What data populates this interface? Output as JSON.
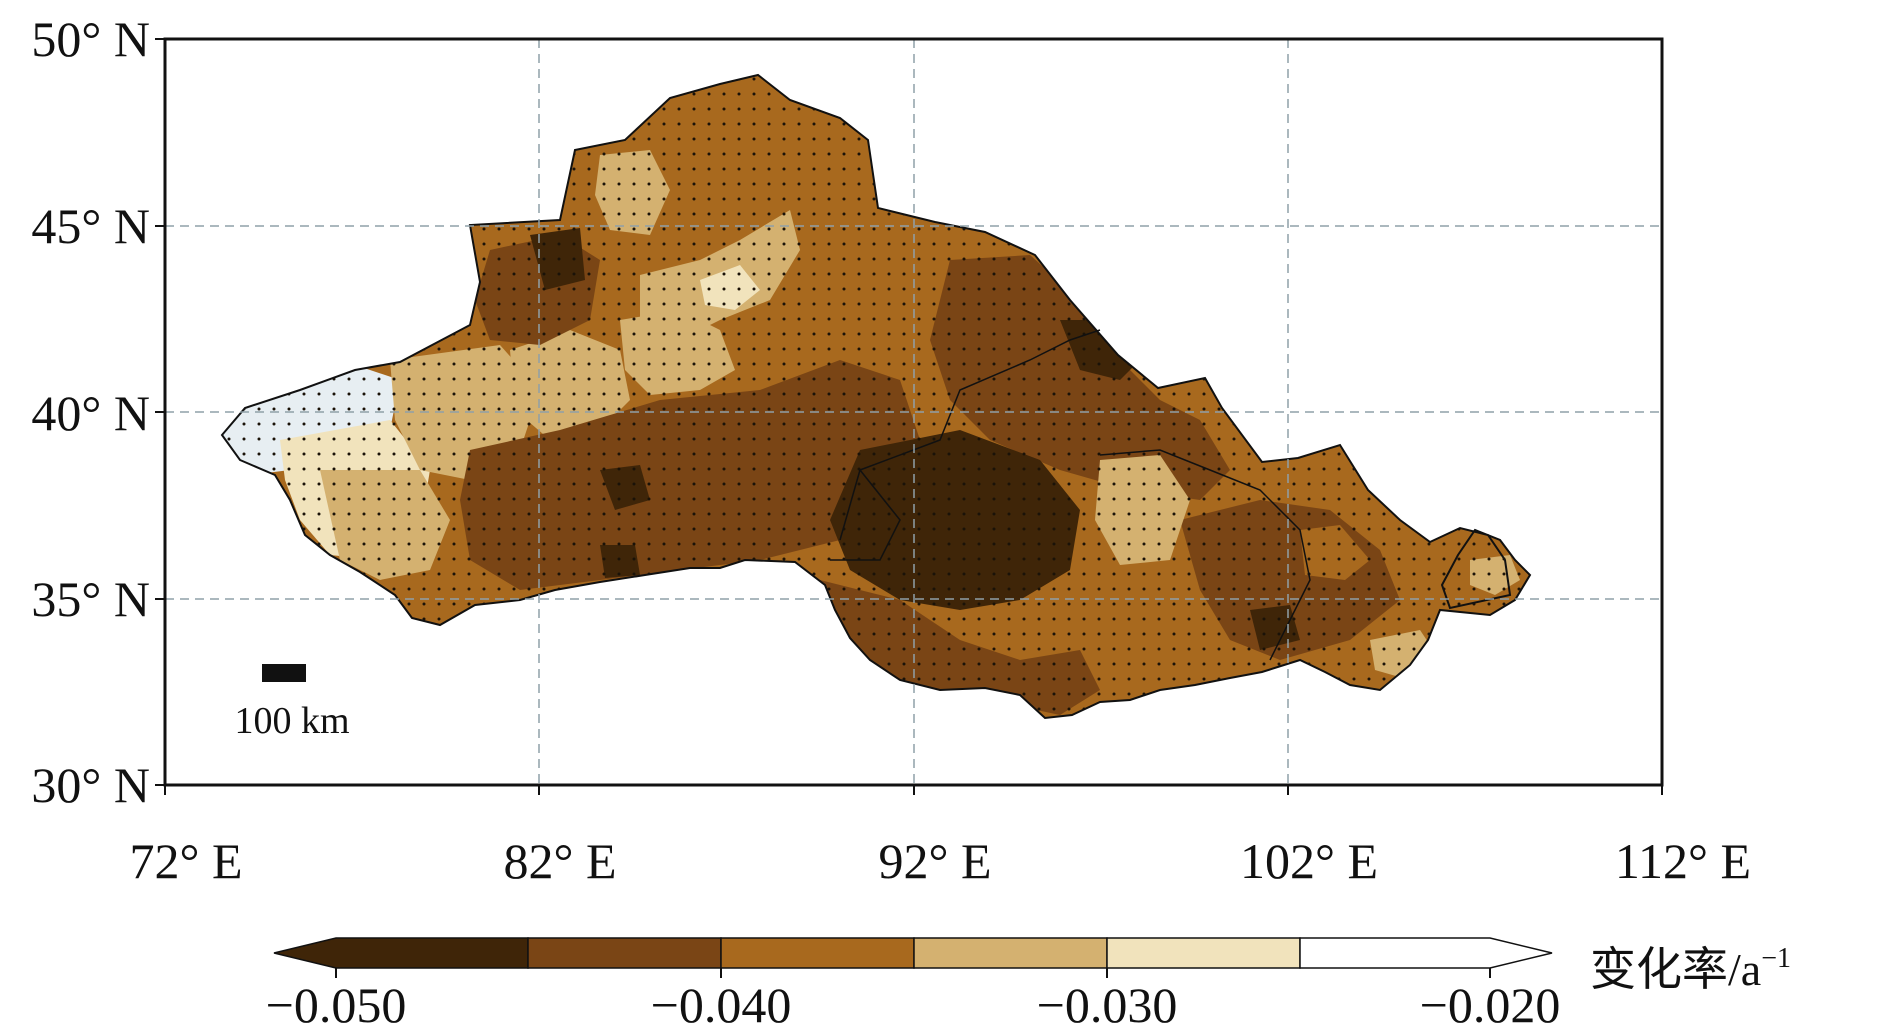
{
  "map": {
    "lat_labels": [
      "50° N",
      "45° N",
      "40° N",
      "35° N",
      "30° N"
    ],
    "lon_labels": [
      "72° E",
      "82° E",
      "92° E",
      "102° E",
      "112° E"
    ],
    "scale_bar_label": "100 km",
    "extent": {
      "lon": [
        72,
        112
      ],
      "lat": [
        30,
        50
      ]
    }
  },
  "colorbar": {
    "title": "变化率/a",
    "title_superscript": "−1",
    "tick_labels": [
      "−0.050",
      "−0.040",
      "−0.030",
      "−0.020"
    ],
    "bins": [
      {
        "color": "#3f2508"
      },
      {
        "color": "#7a4515"
      },
      {
        "color": "#a8691e"
      },
      {
        "color": "#d4b170"
      },
      {
        "color": "#f1e3bc"
      },
      {
        "color": "#ffffff"
      }
    ]
  },
  "colors": {
    "darkest": "#3f2508",
    "dark": "#7a4515",
    "medium": "#a8691e",
    "light": "#d4b170",
    "pale": "#f1e3bc",
    "white_blue": "#e7eef2",
    "grid": "#8fa0a8"
  }
}
